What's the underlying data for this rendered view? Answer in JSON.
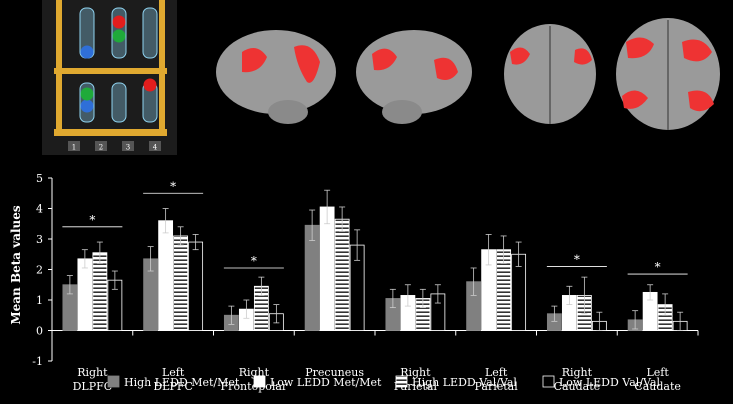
{
  "task_panel": {
    "button_labels": [
      "1",
      "2",
      "3",
      "4"
    ],
    "colors": {
      "red": "#e21d1d",
      "green": "#1faa3a",
      "blue": "#2f6fd8",
      "frame": "#e0a930"
    }
  },
  "brain_views": [
    "lateral-left",
    "lateral-right",
    "posterior",
    "superior"
  ],
  "chart_data": {
    "type": "bar",
    "ylabel": "Mean Beta values",
    "ylim": [
      -1,
      5
    ],
    "yticks": [
      -1,
      0,
      1,
      2,
      3,
      4,
      5
    ],
    "grid": false,
    "legend_position": "bottom",
    "categories": [
      [
        "Right",
        "DLPFC"
      ],
      [
        "Left",
        "DLPFC"
      ],
      [
        "Right",
        "Frontopolar"
      ],
      [
        "Precuneus"
      ],
      [
        "Right",
        "Parietal"
      ],
      [
        "Left",
        "Parietal"
      ],
      [
        "Right",
        "Caudate"
      ],
      [
        "Left",
        "Caudate"
      ]
    ],
    "series": [
      {
        "name": "High LEDD Met/Met",
        "style": "gray",
        "color": "#808080",
        "values": [
          1.5,
          2.35,
          0.5,
          3.45,
          1.05,
          1.6,
          0.55,
          0.35
        ],
        "errors": [
          0.3,
          0.4,
          0.3,
          0.5,
          0.3,
          0.45,
          0.25,
          0.3
        ]
      },
      {
        "name": "Low LEDD Met/Met",
        "style": "white",
        "color": "#ffffff",
        "values": [
          2.35,
          3.6,
          0.7,
          4.05,
          1.15,
          2.65,
          1.15,
          1.25
        ],
        "errors": [
          0.3,
          0.4,
          0.3,
          0.55,
          0.35,
          0.5,
          0.3,
          0.25
        ]
      },
      {
        "name": "High LEDD Val/Val",
        "style": "striped",
        "color": "#ffffff",
        "values": [
          2.55,
          3.1,
          1.45,
          3.65,
          1.05,
          2.65,
          1.15,
          0.85
        ],
        "errors": [
          0.35,
          0.3,
          0.3,
          0.4,
          0.3,
          0.45,
          0.6,
          0.35
        ]
      },
      {
        "name": "Low LEDD Val/Val",
        "style": "outline",
        "color": "#000000",
        "values": [
          1.65,
          2.9,
          0.55,
          2.8,
          1.2,
          2.5,
          0.3,
          0.3
        ],
        "errors": [
          0.3,
          0.25,
          0.3,
          0.5,
          0.3,
          0.4,
          0.3,
          0.3
        ]
      }
    ],
    "significance": [
      {
        "category": 0,
        "label": "*",
        "y": 3.4
      },
      {
        "category": 1,
        "label": "*",
        "y": 4.5
      },
      {
        "category": 2,
        "label": "*",
        "y": 2.05
      },
      {
        "category": 6,
        "label": "*",
        "y": 2.1
      },
      {
        "category": 7,
        "label": "*",
        "y": 1.85
      }
    ]
  }
}
